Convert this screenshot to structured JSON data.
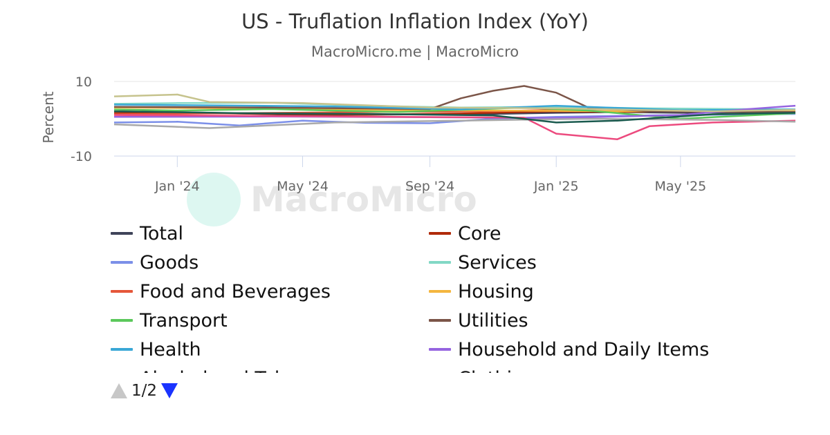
{
  "title": "US - Truflation Inflation Index (YoY)",
  "subtitle": "MacroMicro.me | MacroMicro",
  "watermark": "MacroMicro",
  "pager": {
    "label": "1/2"
  },
  "chart_data": {
    "type": "line",
    "ylabel": "Percent",
    "ylim": [
      -10,
      10
    ],
    "yticks": [
      10,
      -10
    ],
    "xlim": [
      "2023-11-01",
      "2025-08-20"
    ],
    "xticks": [
      {
        "date": "2024-01-01",
        "label": "Jan '24"
      },
      {
        "date": "2024-05-01",
        "label": "May '24"
      },
      {
        "date": "2024-09-01",
        "label": "Sep '24"
      },
      {
        "date": "2025-01-01",
        "label": "Jan '25"
      },
      {
        "date": "2025-05-01",
        "label": "May '25"
      }
    ],
    "legend_position": "bottom",
    "series": [
      {
        "name": "Total",
        "color": "#3f4359",
        "points": [
          [
            "2023-11-01",
            2.0
          ],
          [
            "2024-01-01",
            1.8
          ],
          [
            "2024-03-01",
            1.4
          ],
          [
            "2024-05-01",
            1.0
          ],
          [
            "2024-07-01",
            1.1
          ],
          [
            "2024-09-01",
            1.2
          ],
          [
            "2024-11-01",
            1.3
          ],
          [
            "2025-01-01",
            1.6
          ],
          [
            "2025-03-01",
            1.8
          ],
          [
            "2025-05-01",
            1.6
          ],
          [
            "2025-07-01",
            1.8
          ],
          [
            "2025-08-20",
            1.9
          ]
        ]
      },
      {
        "name": "Core",
        "color": "#b02a08",
        "points": [
          [
            "2023-11-01",
            1.5
          ],
          [
            "2024-01-01",
            1.6
          ],
          [
            "2024-04-01",
            1.3
          ],
          [
            "2024-07-01",
            1.1
          ],
          [
            "2024-10-01",
            1.4
          ],
          [
            "2025-01-01",
            2.0
          ],
          [
            "2025-03-01",
            1.8
          ],
          [
            "2025-06-01",
            2.3
          ],
          [
            "2025-08-20",
            2.1
          ]
        ]
      },
      {
        "name": "Goods",
        "color": "#7b8fe8",
        "points": [
          [
            "2023-11-01",
            -1.0
          ],
          [
            "2024-01-01",
            -0.8
          ],
          [
            "2024-03-01",
            -1.8
          ],
          [
            "2024-05-01",
            -0.5
          ],
          [
            "2024-07-01",
            -1.1
          ],
          [
            "2024-09-01",
            -1.2
          ],
          [
            "2024-11-01",
            0.0
          ],
          [
            "2025-01-01",
            0.5
          ],
          [
            "2025-04-01",
            0.9
          ],
          [
            "2025-08-20",
            1.3
          ]
        ]
      },
      {
        "name": "Services",
        "color": "#82d8c5",
        "points": [
          [
            "2023-11-01",
            4.0
          ],
          [
            "2024-01-01",
            4.2
          ],
          [
            "2024-04-01",
            4.3
          ],
          [
            "2024-07-01",
            3.5
          ],
          [
            "2024-10-01",
            3.0
          ],
          [
            "2025-01-01",
            3.2
          ],
          [
            "2025-04-01",
            2.8
          ],
          [
            "2025-08-20",
            2.5
          ]
        ]
      },
      {
        "name": "Food and Beverages",
        "color": "#e5573a",
        "points": [
          [
            "2023-11-01",
            1.2
          ],
          [
            "2024-03-01",
            1.5
          ],
          [
            "2024-07-01",
            1.8
          ],
          [
            "2024-11-01",
            2.0
          ],
          [
            "2025-02-01",
            2.6
          ],
          [
            "2025-05-01",
            2.2
          ],
          [
            "2025-08-20",
            2.4
          ]
        ]
      },
      {
        "name": "Housing",
        "color": "#f4b63f",
        "points": [
          [
            "2023-11-01",
            3.0
          ],
          [
            "2024-03-01",
            2.8
          ],
          [
            "2024-07-01",
            2.4
          ],
          [
            "2024-11-01",
            2.2
          ],
          [
            "2025-03-01",
            2.0
          ],
          [
            "2025-08-20",
            2.1
          ]
        ]
      },
      {
        "name": "Transport",
        "color": "#5bc85b",
        "points": [
          [
            "2023-11-01",
            2.5
          ],
          [
            "2024-01-01",
            2.2
          ],
          [
            "2024-04-01",
            2.6
          ],
          [
            "2024-08-01",
            1.8
          ],
          [
            "2024-12-01",
            3.0
          ],
          [
            "2025-02-01",
            2.2
          ],
          [
            "2025-05-01",
            0.0
          ],
          [
            "2025-08-20",
            1.5
          ]
        ]
      },
      {
        "name": "Utilities",
        "color": "#7b5548",
        "points": [
          [
            "2023-11-01",
            3.2
          ],
          [
            "2024-04-01",
            3.0
          ],
          [
            "2024-09-01",
            2.6
          ],
          [
            "2024-10-01",
            5.5
          ],
          [
            "2024-11-01",
            7.5
          ],
          [
            "2024-12-01",
            8.8
          ],
          [
            "2025-01-01",
            7.0
          ],
          [
            "2025-02-01",
            3.0
          ],
          [
            "2025-04-01",
            2.0
          ],
          [
            "2025-08-20",
            1.8
          ]
        ]
      },
      {
        "name": "Health",
        "color": "#3aa7d6",
        "points": [
          [
            "2023-11-01",
            3.8
          ],
          [
            "2024-02-01",
            3.6
          ],
          [
            "2024-06-01",
            3.3
          ],
          [
            "2024-10-01",
            2.5
          ],
          [
            "2025-01-01",
            3.5
          ],
          [
            "2025-05-01",
            2.3
          ],
          [
            "2025-08-20",
            2.5
          ]
        ]
      },
      {
        "name": "Household and Daily Items",
        "color": "#9564e0",
        "points": [
          [
            "2023-11-01",
            0.5
          ],
          [
            "2024-04-01",
            0.6
          ],
          [
            "2024-09-01",
            0.4
          ],
          [
            "2025-01-01",
            0.2
          ],
          [
            "2025-05-01",
            1.0
          ],
          [
            "2025-07-01",
            2.5
          ],
          [
            "2025-08-20",
            3.5
          ]
        ]
      },
      {
        "name": "Alcohol and Tobacco",
        "color": "#ec4a7e",
        "points": [
          [
            "2023-11-01",
            1.0
          ],
          [
            "2024-03-01",
            0.8
          ],
          [
            "2024-08-01",
            0.5
          ],
          [
            "2024-12-01",
            0.3
          ],
          [
            "2025-01-01",
            -4.0
          ],
          [
            "2025-03-01",
            -5.5
          ],
          [
            "2025-04-01",
            -2.0
          ],
          [
            "2025-06-01",
            -1.0
          ],
          [
            "2025-08-20",
            -0.5
          ]
        ]
      },
      {
        "name": "Clothing",
        "color": "#a9a9a9",
        "points": [
          [
            "2023-11-01",
            -1.5
          ],
          [
            "2024-02-01",
            -2.5
          ],
          [
            "2024-06-01",
            -1.0
          ],
          [
            "2024-10-01",
            -0.5
          ],
          [
            "2025-02-01",
            0.0
          ],
          [
            "2025-06-01",
            -0.3
          ],
          [
            "2025-08-20",
            -0.8
          ]
        ]
      },
      {
        "color": "#c6c38d",
        "points": [
          [
            "2023-11-01",
            6.0
          ],
          [
            "2024-01-01",
            6.5
          ],
          [
            "2024-02-01",
            4.5
          ],
          [
            "2024-05-01",
            4.2
          ],
          [
            "2024-09-01",
            3.0
          ],
          [
            "2025-01-01",
            2.8
          ],
          [
            "2025-06-01",
            2.0
          ],
          [
            "2025-08-20",
            2.4
          ]
        ]
      },
      {
        "color": "#1a5a4e",
        "points": [
          [
            "2023-11-01",
            2.0
          ],
          [
            "2024-03-01",
            1.5
          ],
          [
            "2024-07-01",
            1.3
          ],
          [
            "2024-11-01",
            0.9
          ],
          [
            "2025-01-01",
            -1.0
          ],
          [
            "2025-03-01",
            -0.5
          ],
          [
            "2025-06-01",
            1.2
          ],
          [
            "2025-08-20",
            1.6
          ]
        ]
      }
    ]
  }
}
